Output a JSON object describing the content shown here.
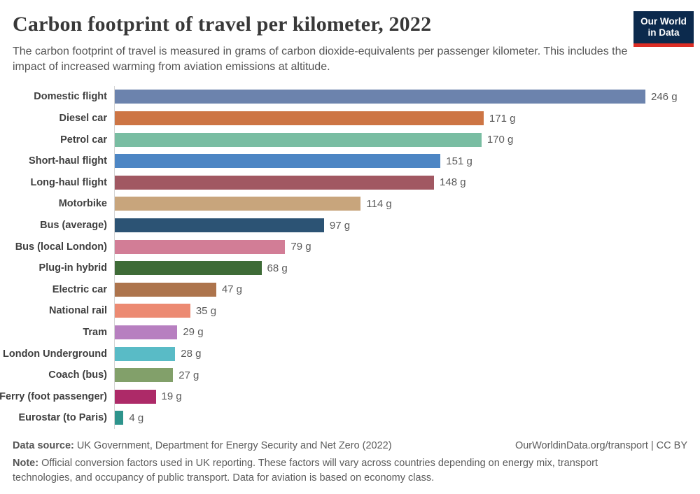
{
  "header": {
    "title": "Carbon footprint of travel per kilometer, 2022",
    "subtitle": "The carbon footprint of travel is measured in grams of carbon dioxide-equivalents per passenger kilometer. This includes the impact of increased warming from aviation emissions at altitude.",
    "logo": {
      "line1": "Our World",
      "line2": "in Data",
      "bg_color": "#0c2a4d",
      "accent_color": "#dc2d25"
    }
  },
  "chart_data": {
    "type": "bar",
    "orientation": "horizontal",
    "title": "Carbon footprint of travel per kilometer, 2022",
    "xlabel": "",
    "ylabel": "",
    "unit": "grams CO2-equivalents per passenger kilometer",
    "xlim": [
      0,
      246
    ],
    "grid": false,
    "legend": "none",
    "categories": [
      "Domestic flight",
      "Diesel car",
      "Petrol car",
      "Short-haul flight",
      "Long-haul flight",
      "Motorbike",
      "Bus (average)",
      "Bus (local London)",
      "Plug-in hybrid",
      "Electric car",
      "National rail",
      "Tram",
      "London Underground",
      "Coach (bus)",
      "Ferry (foot passenger)",
      "Eurostar (to Paris)"
    ],
    "values": [
      246,
      171,
      170,
      151,
      148,
      114,
      97,
      79,
      68,
      47,
      35,
      29,
      28,
      27,
      19,
      4
    ],
    "value_labels": [
      "246 g",
      "171 g",
      "170 g",
      "151 g",
      "148 g",
      "114 g",
      "97 g",
      "79 g",
      "68 g",
      "47 g",
      "35 g",
      "29 g",
      "28 g",
      "27 g",
      "19 g",
      "4 g"
    ],
    "colors": [
      "#6c83ad",
      "#cd7544",
      "#79bda2",
      "#4d86c4",
      "#a15862",
      "#c8a57c",
      "#2c5374",
      "#d27d96",
      "#3e6b37",
      "#ad744c",
      "#ec8a72",
      "#b77fc0",
      "#59bbc6",
      "#82a06a",
      "#ad2a68",
      "#2e948c"
    ]
  },
  "footer": {
    "data_source_label": "Data source:",
    "data_source": " UK Government, Department for Energy Security and Net Zero (2022)",
    "link": "OurWorldinData.org/transport | CC BY",
    "note_label": "Note:",
    "note": " Official conversion factors used in UK reporting. These factors will vary across countries depending on energy mix, transport technologies, and occupancy of public transport. Data for aviation is based on economy class."
  }
}
